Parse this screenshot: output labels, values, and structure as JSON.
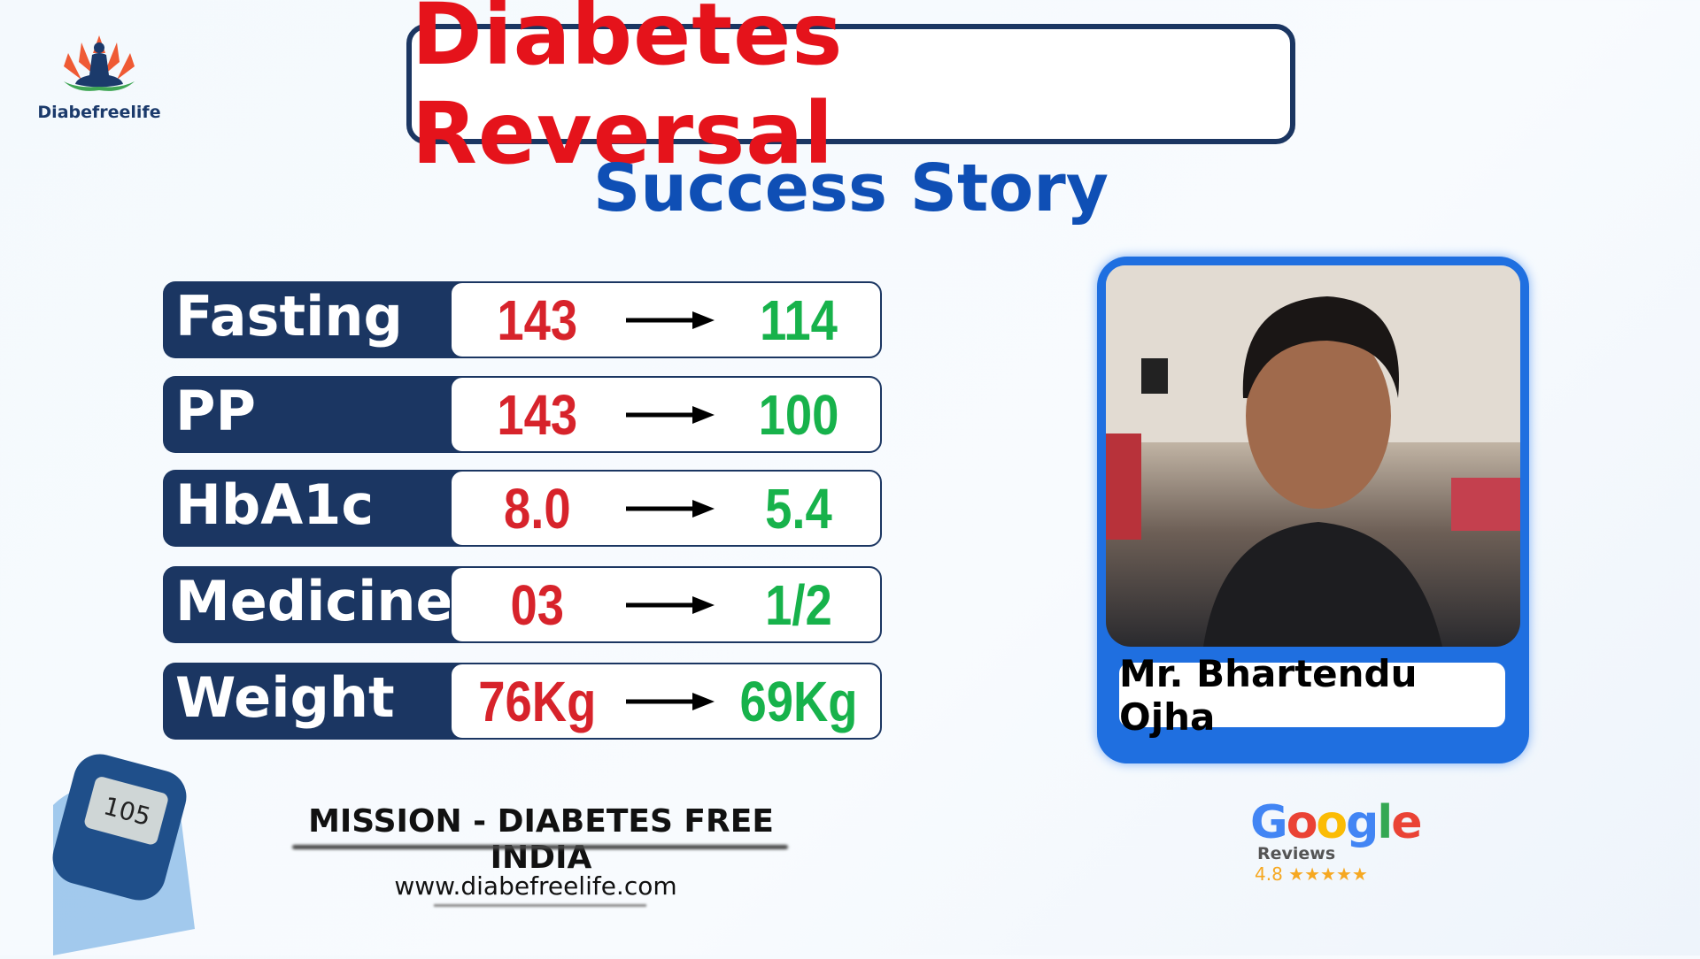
{
  "brand": {
    "name": "Diabefreelife"
  },
  "header": {
    "title": "Diabetes Reversal",
    "subtitle": "Success Story"
  },
  "colors": {
    "navy": "#1b3662",
    "red": "#e5131b",
    "green": "#17b24b",
    "blue": "#1f6fe0"
  },
  "metrics": [
    {
      "label": "Fasting",
      "from": "143",
      "to": "114"
    },
    {
      "label": "PP",
      "from": "143",
      "to": "100"
    },
    {
      "label": "HbA1c",
      "from": "8.0",
      "to": "5.4"
    },
    {
      "label": "Medicines",
      "from": "03",
      "to": "1/2"
    },
    {
      "label": "Weight",
      "from": "76Kg",
      "to": "69Kg"
    }
  ],
  "patient": {
    "name": "Mr. Bhartendu Ojha"
  },
  "footer": {
    "mission": "MISSION - DIABETES FREE INDIA",
    "website": "www.diabefreelife.com"
  },
  "google": {
    "label": "Google",
    "reviews": "Reviews",
    "rating": "4.8",
    "stars": "★★★★★"
  },
  "meter": {
    "reading": "105"
  }
}
